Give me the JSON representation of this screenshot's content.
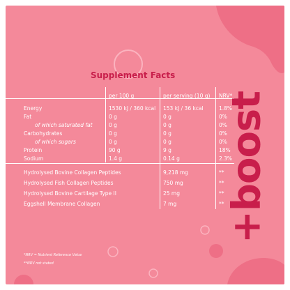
{
  "title": "Supplement Facts",
  "brand": "+boost",
  "columns": [
    "per 100 g",
    "per serving (10 g)",
    "NRV*"
  ],
  "nutrition_rows": [
    {
      "name": "Energy",
      "per100": "1530 kJ / 360 kcal",
      "serving": "153 kJ / 36 kcal",
      "nrv": "1.8%"
    },
    {
      "name": "Fat",
      "per100": "0 g",
      "serving": "0 g",
      "nrv": "0%"
    },
    {
      "name": "of which saturated fat",
      "per100": "0 g",
      "serving": "0 g",
      "nrv": "0%"
    },
    {
      "name": "Carbohydrates",
      "per100": "0 g",
      "serving": "0 g",
      "nrv": "0%"
    },
    {
      "name": "of which sugars",
      "per100": "0 g",
      "serving": "0 g",
      "nrv": "0%"
    },
    {
      "name": "Protein",
      "per100": "90 g",
      "serving": "9 g",
      "nrv": "18%"
    },
    {
      "name": "Sodium",
      "per100": "1.4 g",
      "serving": "0.14 g",
      "nrv": "2.3%"
    }
  ],
  "ingredient_rows": [
    {
      "name": "Hydrolysed Bovine Collagen Peptides",
      "serving": "9,218 mg",
      "nrv": "**"
    },
    {
      "name": "Hydrolysed Fish Collagen Peptides",
      "serving": "750 mg",
      "nrv": "**"
    },
    {
      "name": "Hydrolysed Bovine Cartilage Type II",
      "serving": "25 mg",
      "nrv": "**"
    },
    {
      "name": "Eggshell Membrane Collagen",
      "serving": "7 mg",
      "nrv": "**"
    }
  ],
  "footnotes": [
    "*NRV = Nutrient Reference Value",
    "**NRV not stated"
  ],
  "colors": {
    "background": "#f4899a",
    "accent": "#c81e4b",
    "text": "#ffffff"
  }
}
